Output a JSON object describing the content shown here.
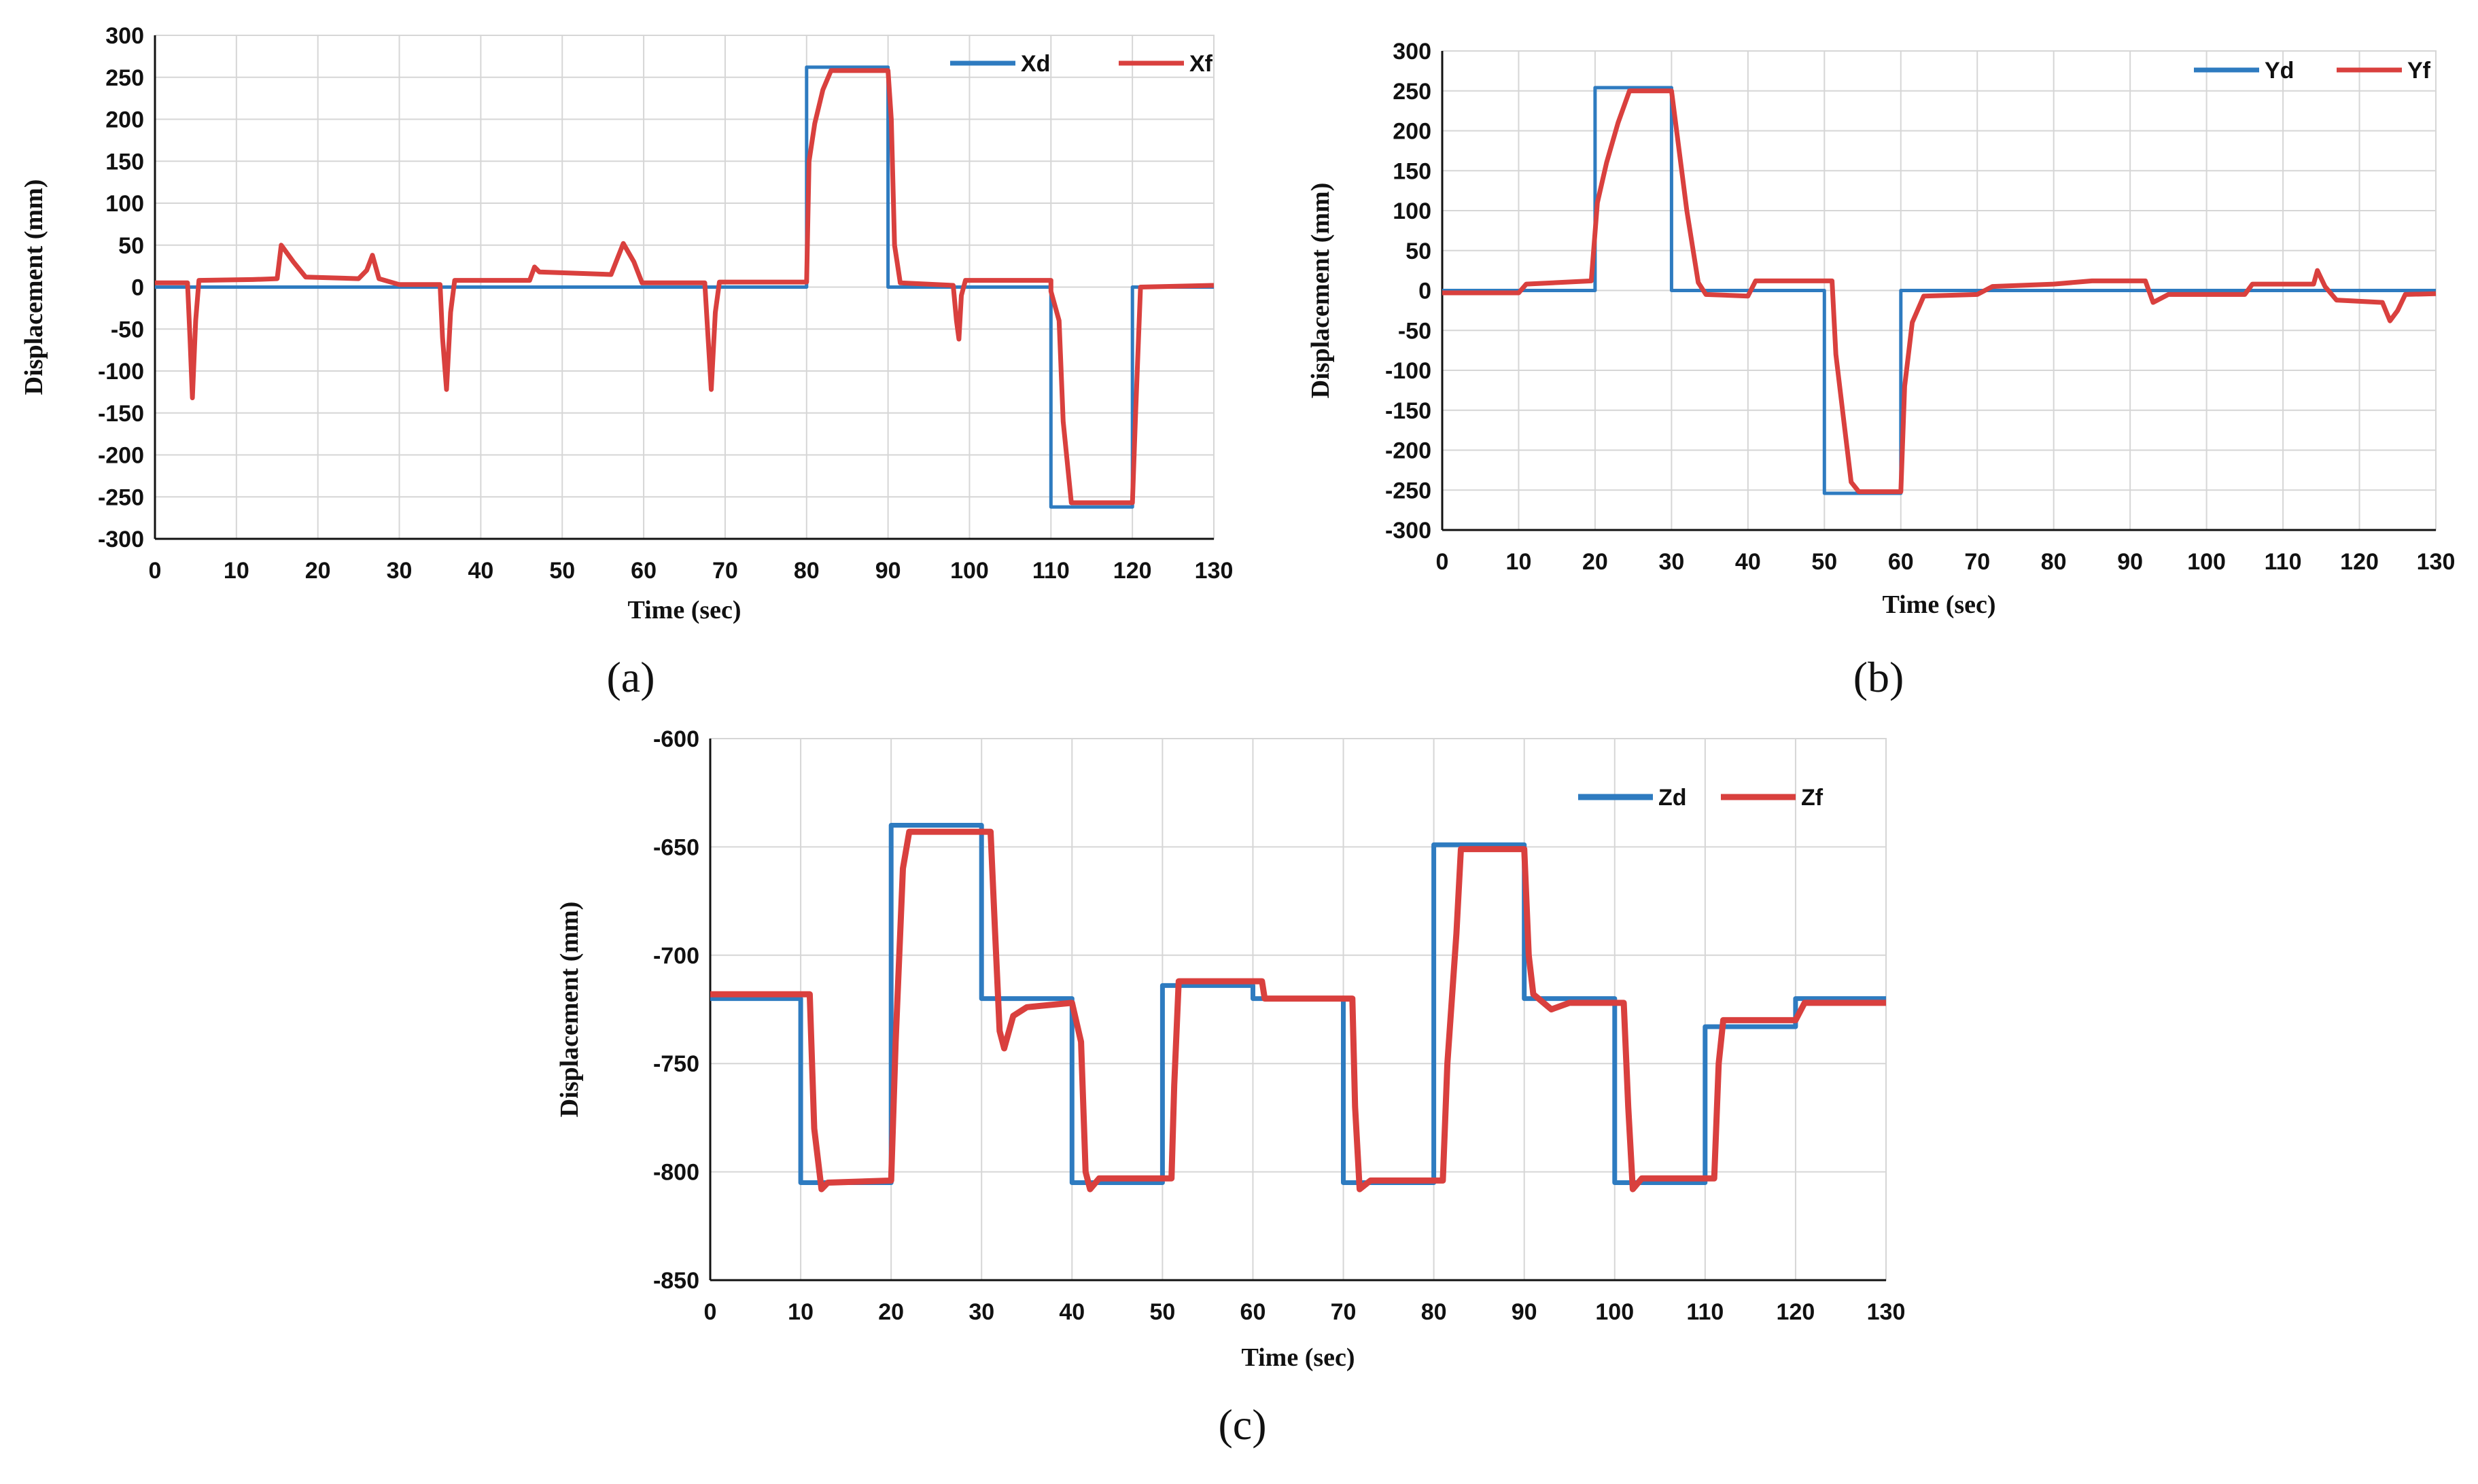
{
  "chart_data": [
    {
      "id": "a",
      "type": "line",
      "caption": "(a)",
      "xlabel": "Time (sec)",
      "ylabel": "Displacement (mm)",
      "xlim": [
        0,
        130
      ],
      "ylim": [
        -300,
        300
      ],
      "xticks": [
        0,
        10,
        20,
        30,
        40,
        50,
        60,
        70,
        80,
        90,
        100,
        110,
        120,
        130
      ],
      "yticks": [
        300,
        250,
        200,
        150,
        100,
        50,
        0,
        -50,
        -100,
        -150,
        -200,
        -250,
        -300
      ],
      "grid": true,
      "legend_position": "top-right",
      "series": [
        {
          "name": "Xd",
          "color": "#2e7bc0",
          "points": [
            [
              0,
              0
            ],
            [
              80,
              0
            ],
            [
              80,
              262
            ],
            [
              90,
              262
            ],
            [
              90,
              0
            ],
            [
              110,
              0
            ],
            [
              110,
              -262
            ],
            [
              120,
              -262
            ],
            [
              120,
              0
            ],
            [
              130,
              0
            ]
          ]
        },
        {
          "name": "Xf",
          "color": "#d9403e",
          "points": [
            [
              0,
              5
            ],
            [
              4,
              5
            ],
            [
              4.3,
              -60
            ],
            [
              4.6,
              -132
            ],
            [
              5,
              -40
            ],
            [
              5.4,
              8
            ],
            [
              12,
              9
            ],
            [
              15,
              10
            ],
            [
              15.5,
              50
            ],
            [
              17,
              30
            ],
            [
              18.5,
              12
            ],
            [
              25,
              10
            ],
            [
              26,
              20
            ],
            [
              26.7,
              38
            ],
            [
              27.5,
              10
            ],
            [
              30,
              3
            ],
            [
              35,
              3
            ],
            [
              35.3,
              -60
            ],
            [
              35.8,
              -122
            ],
            [
              36.3,
              -30
            ],
            [
              36.8,
              8
            ],
            [
              46,
              8
            ],
            [
              46.6,
              24
            ],
            [
              47.2,
              18
            ],
            [
              56,
              15
            ],
            [
              57.5,
              52
            ],
            [
              58.8,
              30
            ],
            [
              59.8,
              5
            ],
            [
              67.5,
              5
            ],
            [
              67.9,
              -60
            ],
            [
              68.3,
              -122
            ],
            [
              68.8,
              -30
            ],
            [
              69.3,
              6
            ],
            [
              80,
              6
            ],
            [
              80.3,
              150
            ],
            [
              81,
              195
            ],
            [
              82,
              235
            ],
            [
              83,
              258
            ],
            [
              90,
              258
            ],
            [
              90.4,
              200
            ],
            [
              90.8,
              50
            ],
            [
              91.5,
              5
            ],
            [
              98,
              2
            ],
            [
              98.4,
              -40
            ],
            [
              98.7,
              -62
            ],
            [
              99,
              -10
            ],
            [
              99.5,
              8
            ],
            [
              110,
              8
            ],
            [
              110,
              -5
            ],
            [
              111,
              -40
            ],
            [
              111.5,
              -160
            ],
            [
              112.5,
              -257
            ],
            [
              120,
              -257
            ],
            [
              120.4,
              -150
            ],
            [
              121,
              0
            ],
            [
              130,
              2
            ]
          ]
        }
      ]
    },
    {
      "id": "b",
      "type": "line",
      "caption": "(b)",
      "xlabel": "Time (sec)",
      "ylabel": "Displacement (mm)",
      "xlim": [
        0,
        130
      ],
      "ylim": [
        -300,
        300
      ],
      "xticks": [
        0,
        10,
        20,
        30,
        40,
        50,
        60,
        70,
        80,
        90,
        100,
        110,
        120,
        130
      ],
      "yticks": [
        300,
        250,
        200,
        150,
        100,
        50,
        0,
        -50,
        -100,
        -150,
        -200,
        -250,
        -300
      ],
      "grid": true,
      "legend_position": "top-right",
      "series": [
        {
          "name": "Yd",
          "color": "#2e7bc0",
          "points": [
            [
              0,
              0
            ],
            [
              20,
              0
            ],
            [
              20,
              254
            ],
            [
              30,
              254
            ],
            [
              30,
              0
            ],
            [
              50,
              0
            ],
            [
              50,
              -254
            ],
            [
              60,
              -254
            ],
            [
              60,
              0
            ],
            [
              130,
              0
            ]
          ]
        },
        {
          "name": "Yf",
          "color": "#d9403e",
          "points": [
            [
              0,
              -3
            ],
            [
              10,
              -3
            ],
            [
              11,
              8
            ],
            [
              19.5,
              12
            ],
            [
              20.3,
              110
            ],
            [
              21.5,
              160
            ],
            [
              23,
              210
            ],
            [
              24.5,
              250
            ],
            [
              30,
              250
            ],
            [
              32,
              100
            ],
            [
              33.5,
              10
            ],
            [
              34.5,
              -5
            ],
            [
              40,
              -7
            ],
            [
              41,
              12
            ],
            [
              51,
              12
            ],
            [
              51.5,
              -80
            ],
            [
              52.5,
              -160
            ],
            [
              53.5,
              -240
            ],
            [
              54.5,
              -252
            ],
            [
              60,
              -252
            ],
            [
              60.5,
              -120
            ],
            [
              61.5,
              -40
            ],
            [
              63,
              -7
            ],
            [
              70,
              -5
            ],
            [
              72,
              5
            ],
            [
              80,
              8
            ],
            [
              85,
              12
            ],
            [
              92,
              12
            ],
            [
              93,
              -15
            ],
            [
              95,
              -5
            ],
            [
              105,
              -5
            ],
            [
              106,
              8
            ],
            [
              114,
              8
            ],
            [
              114.5,
              25
            ],
            [
              115.5,
              5
            ],
            [
              117,
              -12
            ],
            [
              123,
              -15
            ],
            [
              124,
              -38
            ],
            [
              125,
              -25
            ],
            [
              126,
              -5
            ],
            [
              130,
              -4
            ]
          ]
        }
      ]
    },
    {
      "id": "c",
      "type": "line",
      "caption": "(c)",
      "xlabel": "Time (sec)",
      "ylabel": "Displacement (mm)",
      "xlim": [
        0,
        130
      ],
      "ylim": [
        -850,
        -600
      ],
      "xticks": [
        0,
        10,
        20,
        30,
        40,
        50,
        60,
        70,
        80,
        90,
        100,
        110,
        120,
        130
      ],
      "yticks": [
        -600,
        -650,
        -700,
        -750,
        -800,
        -850
      ],
      "grid": true,
      "legend_position": "top-right",
      "series": [
        {
          "name": "Zd",
          "color": "#2e7bc0",
          "points": [
            [
              0,
              -720
            ],
            [
              10,
              -720
            ],
            [
              10,
              -805
            ],
            [
              20,
              -805
            ],
            [
              20,
              -640
            ],
            [
              30,
              -640
            ],
            [
              30,
              -720
            ],
            [
              40,
              -720
            ],
            [
              40,
              -805
            ],
            [
              50,
              -805
            ],
            [
              50,
              -714
            ],
            [
              60,
              -714
            ],
            [
              60,
              -720
            ],
            [
              70,
              -720
            ],
            [
              70,
              -805
            ],
            [
              80,
              -805
            ],
            [
              80,
              -649
            ],
            [
              90,
              -649
            ],
            [
              90,
              -720
            ],
            [
              100,
              -720
            ],
            [
              100,
              -805
            ],
            [
              110,
              -805
            ],
            [
              110,
              -733
            ],
            [
              120,
              -733
            ],
            [
              120,
              -720
            ],
            [
              130,
              -720
            ]
          ]
        },
        {
          "name": "Zf",
          "color": "#d9403e",
          "points": [
            [
              0,
              -718
            ],
            [
              11,
              -718
            ],
            [
              11.5,
              -780
            ],
            [
              12.3,
              -808
            ],
            [
              13,
              -805
            ],
            [
              20,
              -804
            ],
            [
              20.5,
              -740
            ],
            [
              21.3,
              -660
            ],
            [
              22,
              -643
            ],
            [
              31,
              -643
            ],
            [
              31.5,
              -690
            ],
            [
              32,
              -735
            ],
            [
              32.5,
              -743
            ],
            [
              33.5,
              -728
            ],
            [
              35,
              -724
            ],
            [
              40,
              -722
            ],
            [
              41,
              -740
            ],
            [
              41.5,
              -800
            ],
            [
              42,
              -808
            ],
            [
              43,
              -803
            ],
            [
              51,
              -803
            ],
            [
              51.3,
              -760
            ],
            [
              51.8,
              -712
            ],
            [
              61,
              -712
            ],
            [
              61.3,
              -720
            ],
            [
              71,
              -720
            ],
            [
              71.3,
              -770
            ],
            [
              71.8,
              -808
            ],
            [
              73,
              -804
            ],
            [
              81,
              -804
            ],
            [
              81.5,
              -750
            ],
            [
              82.5,
              -690
            ],
            [
              83,
              -651
            ],
            [
              90,
              -651
            ],
            [
              90.5,
              -700
            ],
            [
              91,
              -718
            ],
            [
              93,
              -725
            ],
            [
              95,
              -722
            ],
            [
              101,
              -722
            ],
            [
              101.5,
              -770
            ],
            [
              102,
              -808
            ],
            [
              103,
              -803
            ],
            [
              111,
              -803
            ],
            [
              111.5,
              -750
            ],
            [
              112,
              -730
            ],
            [
              120,
              -730
            ],
            [
              121,
              -722
            ],
            [
              130,
              -722
            ]
          ]
        }
      ]
    }
  ]
}
